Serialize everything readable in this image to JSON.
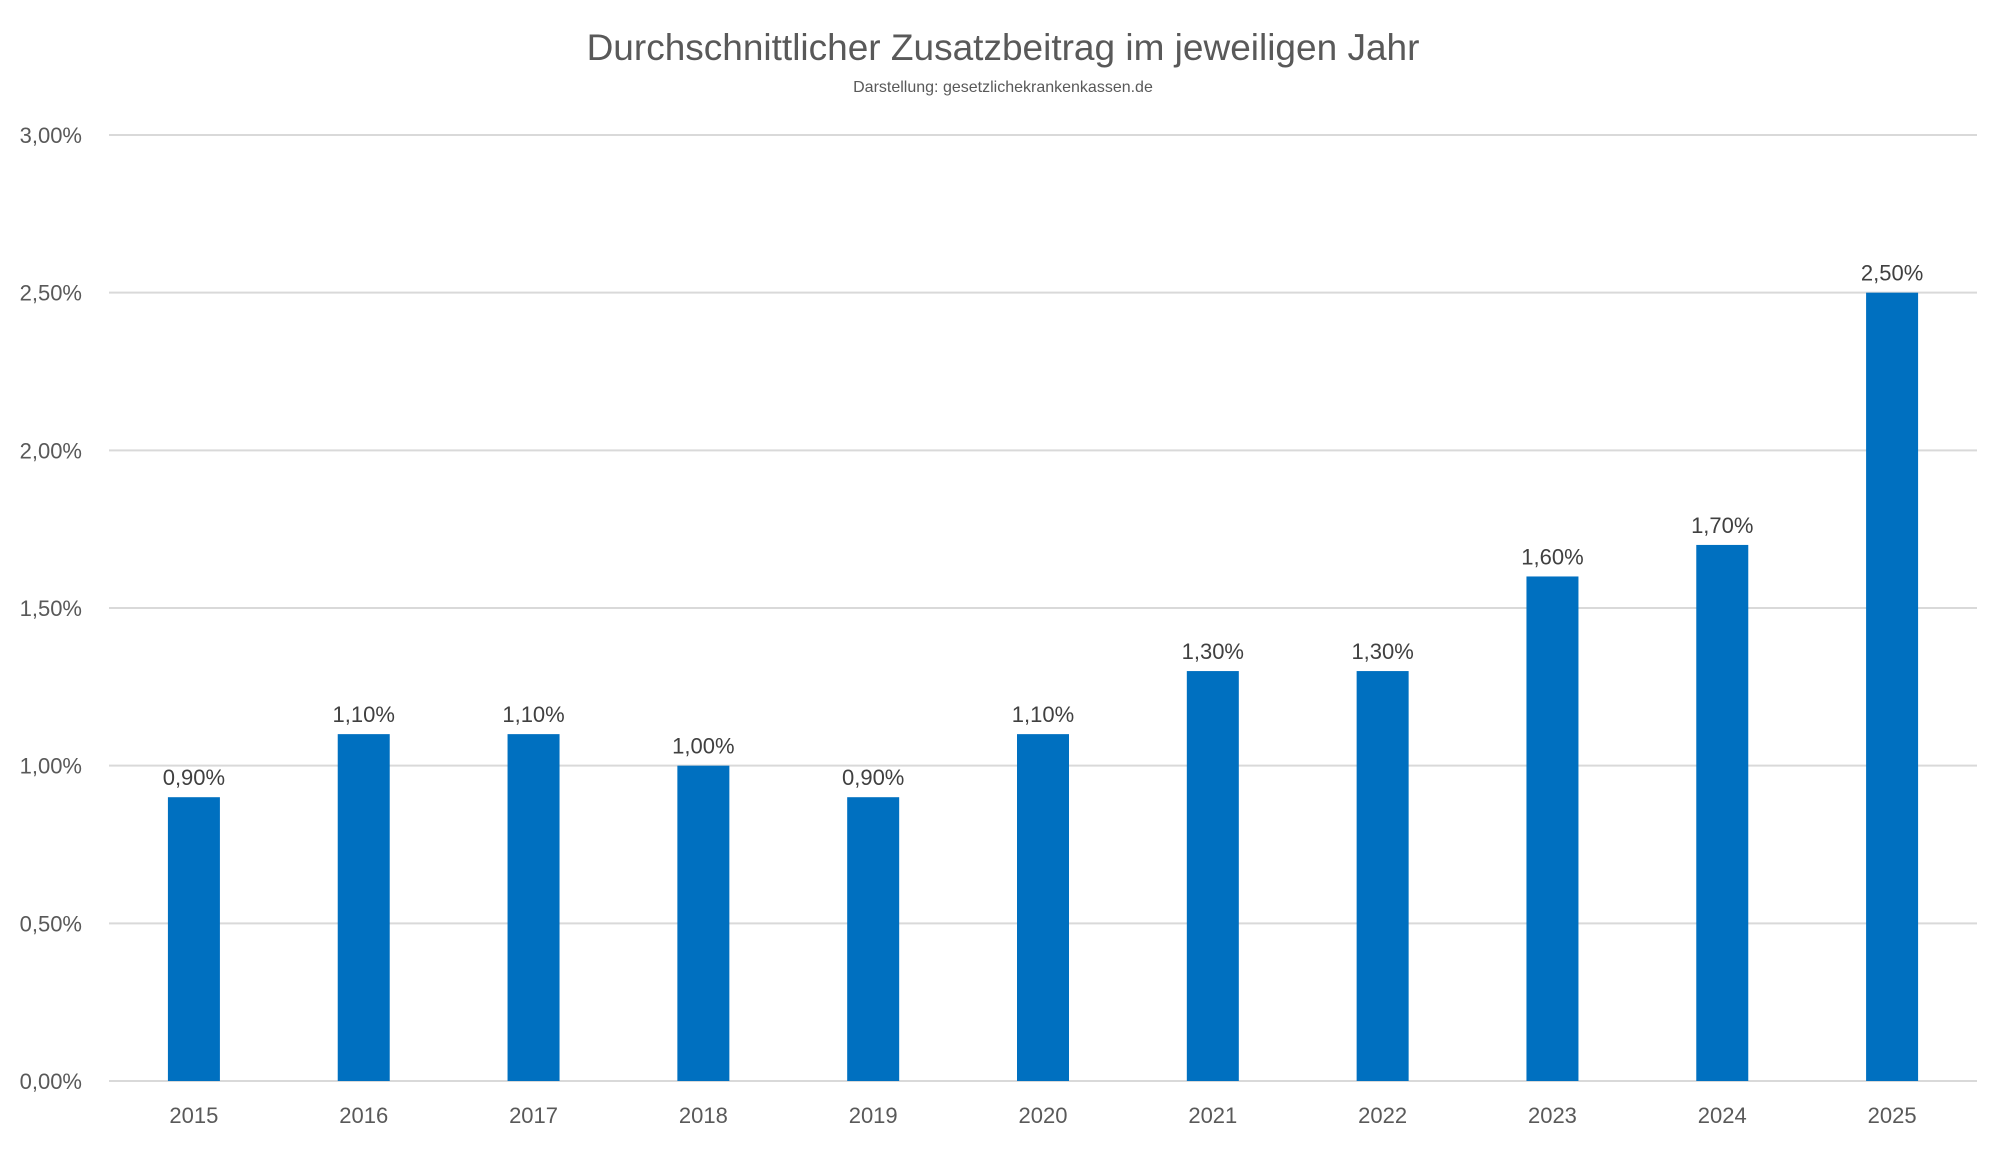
{
  "chart_data": {
    "type": "bar",
    "title": "Durchschnittlicher Zusatzbeitrag im jeweiligen Jahr",
    "subtitle": "Darstellung: gesetzlichekrankenkassen.de",
    "xlabel": "",
    "ylabel": "",
    "categories": [
      "2015",
      "2016",
      "2017",
      "2018",
      "2019",
      "2020",
      "2021",
      "2022",
      "2023",
      "2024",
      "2025"
    ],
    "values": [
      0.9,
      1.1,
      1.1,
      1.0,
      0.9,
      1.1,
      1.3,
      1.3,
      1.6,
      1.7,
      2.5
    ],
    "data_labels": [
      "0,90%",
      "1,10%",
      "1,10%",
      "1,00%",
      "0,90%",
      "1,10%",
      "1,30%",
      "1,30%",
      "1,60%",
      "1,70%",
      "2,50%"
    ],
    "ylim": [
      0,
      3
    ],
    "y_ticks": [
      0,
      0.5,
      1,
      1.5,
      2,
      2.5,
      3
    ],
    "y_tick_labels": [
      "0,00%",
      "0,50%",
      "1,00%",
      "1,50%",
      "2,00%",
      "2,50%",
      "3,00%"
    ],
    "grid": true,
    "legend": "none",
    "colors": {
      "bar": "#0070c0",
      "grid": "#d9d9d9",
      "text": "#595959"
    }
  }
}
